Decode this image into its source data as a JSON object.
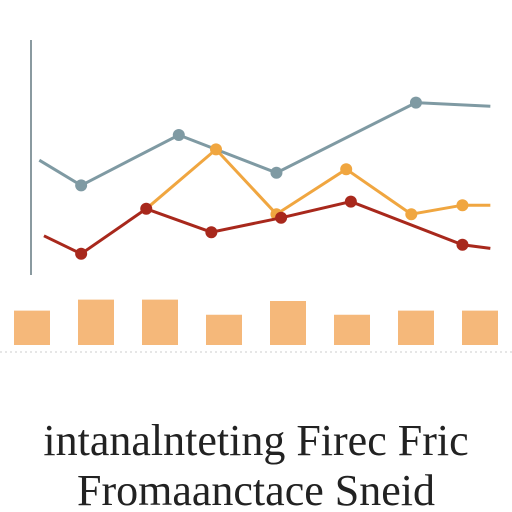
{
  "chart_data": [
    {
      "type": "line",
      "xlim": [
        0,
        100
      ],
      "ylim": [
        0,
        100
      ],
      "series": [
        {
          "color": "#7f9aa3",
          "x": [
            2,
            11,
            32,
            53,
            83,
            99
          ],
          "values": [
            61,
            47,
            75,
            54,
            93,
            91
          ]
        },
        {
          "color": "#f0a640",
          "x": [
            25,
            40,
            53,
            68,
            82,
            93,
            99
          ],
          "values": [
            34,
            67,
            31,
            56,
            31,
            36,
            36
          ]
        },
        {
          "color": "#a8281c",
          "x": [
            3,
            11,
            25,
            39,
            54,
            69,
            93,
            99
          ],
          "values": [
            19,
            9,
            34,
            21,
            29,
            38,
            14,
            12
          ]
        }
      ]
    },
    {
      "type": "bar",
      "color": "#f5b87a",
      "ylim": [
        0,
        40
      ],
      "categories": [
        null,
        null,
        null,
        null,
        null,
        null,
        null,
        null
      ],
      "values": [
        25,
        33,
        33,
        22,
        32,
        22,
        25,
        25
      ]
    }
  ],
  "title": [
    "intanalnteting Firec Fric",
    "Fromaanctace Sneid"
  ]
}
